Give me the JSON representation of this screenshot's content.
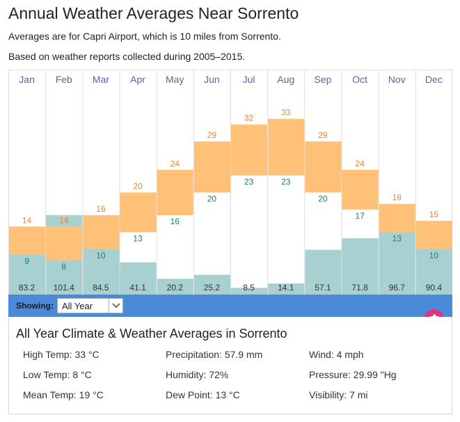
{
  "header": {
    "title": "Annual Weather Averages Near Sorrento",
    "subtitle1": "Averages are for Capri Airport, which is 10 miles from Sorrento.",
    "subtitle2": "Based on weather reports collected during 2005–2015."
  },
  "colors": {
    "temp_band": "#ffc078",
    "high_text": "#e8862a",
    "low_text": "#1d7a7a",
    "precip_bar": "#a8d0d0",
    "month_text": "#5a63a3",
    "grid": "#dedede",
    "toolbar": "#4a8ad8",
    "gear": "#e0357e"
  },
  "chart_data": {
    "type": "bar",
    "title": "Annual Weather Averages Near Sorrento",
    "categories": [
      "Jan",
      "Feb",
      "Mar",
      "Apr",
      "May",
      "Jun",
      "Jul",
      "Aug",
      "Sep",
      "Oct",
      "Nov",
      "Dec"
    ],
    "series": [
      {
        "name": "High Temp (°C)",
        "values": [
          14,
          14,
          16,
          20,
          24,
          29,
          32,
          33,
          29,
          24,
          18,
          15
        ]
      },
      {
        "name": "Low Temp (°C)",
        "values": [
          9,
          8,
          10,
          13,
          16,
          20,
          23,
          23,
          20,
          17,
          13,
          10
        ]
      },
      {
        "name": "Precipitation (mm)",
        "values": [
          83.2,
          101.4,
          84.5,
          41.1,
          20.2,
          25.2,
          8.5,
          14.1,
          57.1,
          71.8,
          96.7,
          90.4
        ]
      }
    ],
    "temp_range": [
      2,
      37
    ],
    "precip_range": [
      0,
      127
    ],
    "grid": true,
    "legend": "none"
  },
  "controls": {
    "showing_label": "Showing:",
    "selected": "All Year"
  },
  "summary": {
    "title": "All Year Climate & Weather Averages in Sorrento",
    "stats": [
      [
        "High Temp: 33 °C",
        "Precipitation: 57.9 mm",
        "Wind: 4 mph"
      ],
      [
        "Low Temp: 8 °C",
        "Humidity: 72%",
        "Pressure: 29.99 \"Hg"
      ],
      [
        "Mean Temp: 19 °C",
        "Dew Point: 13 °C",
        "Visibility: 7 mi"
      ]
    ]
  }
}
